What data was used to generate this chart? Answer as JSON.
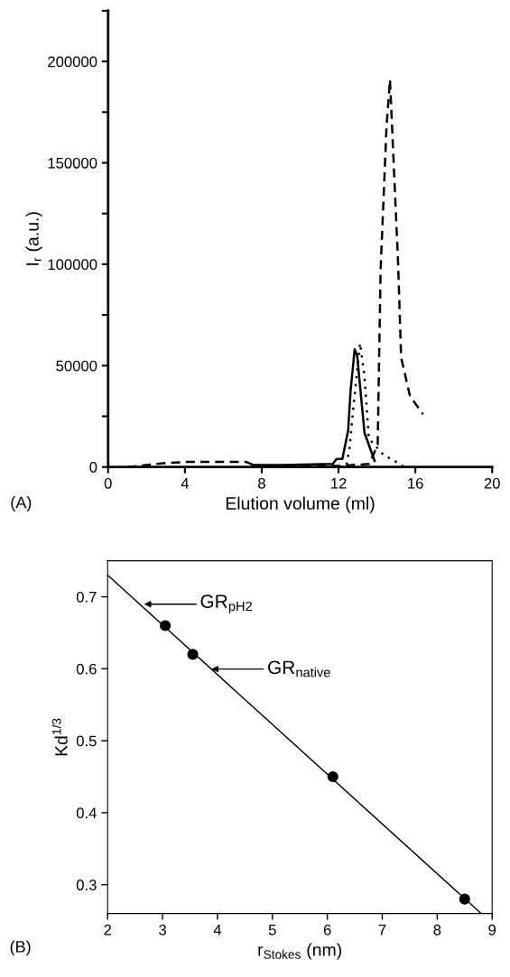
{
  "chart_data": [
    {
      "type": "line",
      "xlabel": "Elution volume (ml)",
      "ylabel": "I$_{r}$ (a.u.)",
      "xlim": [
        0,
        20
      ],
      "ylim": [
        0,
        225000
      ],
      "xticks": [
        0,
        4,
        8,
        12,
        16,
        20
      ],
      "yticks": [
        0,
        {
          "value": 25000,
          "label": null
        },
        50000,
        {
          "value": 75000,
          "label": null
        },
        100000,
        {
          "value": 125000,
          "label": null
        },
        150000,
        {
          "value": 175000,
          "label": null
        },
        200000,
        {
          "value": 225000,
          "label": null
        }
      ],
      "grid": false,
      "legend": false,
      "marker": "none",
      "annotations": [
        "(A)"
      ],
      "series": [
        {
          "color": "#000000",
          "line_style": "dashed",
          "x": [
            1,
            3,
            4.1,
            7.2,
            7.8,
            9,
            12,
            13.6,
            14.04,
            14.19,
            14.5,
            14.68,
            15.1,
            15.26,
            15.72,
            16.4
          ],
          "values": [
            0,
            2000,
            2500,
            2500,
            0,
            500,
            500,
            1500,
            11000,
            97000,
            168000,
            191000,
            101000,
            54000,
            35000,
            26000
          ]
        },
        {
          "color": "#000000",
          "line_style": "solid",
          "x": [
            7.5,
            9,
            11.7,
            11.9,
            12.2,
            12.5,
            12.63,
            12.84,
            12.97,
            13.24,
            13.35,
            13.88
          ],
          "values": [
            1000,
            1000,
            1500,
            4000,
            4000,
            18000,
            38000,
            58000,
            55000,
            28000,
            17000,
            3000
          ]
        },
        {
          "color": "#000000",
          "line_style": "dotted",
          "x": [
            8,
            10,
            12.4,
            12.58,
            12.78,
            13.12,
            13.35,
            13.58,
            14.34,
            15.1,
            15.4
          ],
          "values": [
            0,
            0,
            0,
            10000,
            30000,
            61000,
            45000,
            14000,
            6000,
            2000,
            0
          ]
        }
      ]
    },
    {
      "type": "scatter",
      "xlabel": "r$_{Stokes}$ (nm)",
      "ylabel": "Kd$^{1/3}$",
      "xlim": [
        2,
        9
      ],
      "ylim": [
        0.26,
        0.75
      ],
      "xticks": [
        2,
        3,
        4,
        5,
        6,
        7,
        8,
        9
      ],
      "yticks": [
        0.3,
        0.4,
        0.5,
        0.6,
        0.7
      ],
      "grid": false,
      "legend": false,
      "marker": "circle",
      "annotations": [
        "GR$_{pH2}$",
        "GR$_{native}$",
        "(B)"
      ],
      "series": [
        {
          "color": "#000000",
          "x": [
            3.05,
            3.55,
            6.1,
            8.5
          ],
          "values": [
            0.66,
            0.62,
            0.45,
            0.28
          ]
        },
        {
          "type": "line",
          "color": "#000000",
          "line_style": "solid",
          "marker": "none",
          "x": [
            2,
            8.8
          ],
          "values": [
            0.73,
            0.26
          ]
        }
      ]
    }
  ]
}
